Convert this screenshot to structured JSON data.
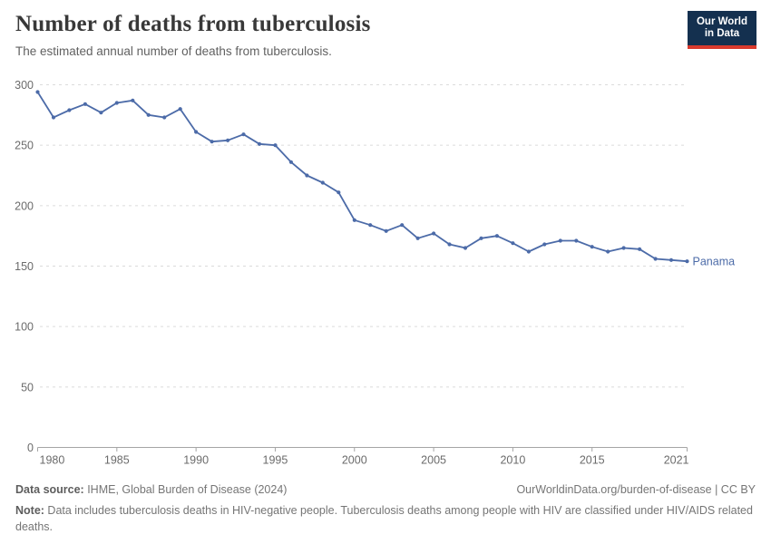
{
  "header": {
    "title": "Number of deaths from tuberculosis",
    "subtitle": "The estimated annual number of deaths from tuberculosis.",
    "logo": {
      "line1": "Our World",
      "line2": "in Data"
    }
  },
  "chart_data": {
    "type": "line",
    "title": "Number of deaths from tuberculosis",
    "xlabel": "",
    "ylabel": "",
    "x": [
      1980,
      1981,
      1982,
      1983,
      1984,
      1985,
      1986,
      1987,
      1988,
      1989,
      1990,
      1991,
      1992,
      1993,
      1994,
      1995,
      1996,
      1997,
      1998,
      1999,
      2000,
      2001,
      2002,
      2003,
      2004,
      2005,
      2006,
      2007,
      2008,
      2009,
      2010,
      2011,
      2012,
      2013,
      2014,
      2015,
      2016,
      2017,
      2018,
      2019,
      2020,
      2021
    ],
    "series": [
      {
        "name": "Panama",
        "values": [
          294,
          273,
          279,
          284,
          277,
          285,
          287,
          275,
          273,
          280,
          261,
          253,
          254,
          259,
          251,
          250,
          236,
          225,
          219,
          211,
          188,
          184,
          179,
          184,
          173,
          177,
          168,
          165,
          173,
          175,
          169,
          162,
          168,
          171,
          171,
          166,
          162,
          165,
          164,
          156,
          155,
          154
        ]
      }
    ],
    "ylim": [
      0,
      300
    ],
    "yticks": [
      0,
      50,
      100,
      150,
      200,
      250,
      300
    ],
    "xticks": [
      1980,
      1985,
      1990,
      1995,
      2000,
      2005,
      2010,
      2015,
      2021
    ],
    "grid": "horizontal-dashed",
    "legend_position": "end-of-line-label",
    "end_label": "Panama"
  },
  "footer": {
    "source_label": "Data source:",
    "source_text": " IHME, Global Burden of Disease (2024)",
    "rights": "OurWorldinData.org/burden-of-disease | CC BY",
    "note_label": "Note:",
    "note_text": " Data includes tuberculosis deaths in HIV-negative people. Tuberculosis deaths among people with HIV are classified under HIV/AIDS related deaths."
  },
  "colors": {
    "line": "#4C6BA8",
    "grid": "#DBDBDB",
    "axis": "#A5A5A5",
    "tick_label": "#6B6B6B",
    "logo_bg": "#14304F",
    "logo_accent": "#D93A2D"
  }
}
